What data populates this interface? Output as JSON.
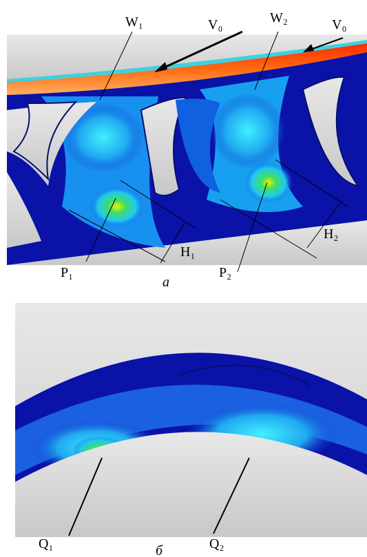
{
  "panel_a": {
    "labels": {
      "w1": "W₁",
      "v0_left": "V₀",
      "w2": "W₂",
      "v0_right": "V₀",
      "p1": "P₁",
      "p2": "P₂",
      "h1": "H₁",
      "h2": "H₂"
    },
    "caption": "а"
  },
  "panel_b": {
    "labels": {
      "q1": "Q₁",
      "q2": "Q₂"
    },
    "caption": "б"
  }
}
